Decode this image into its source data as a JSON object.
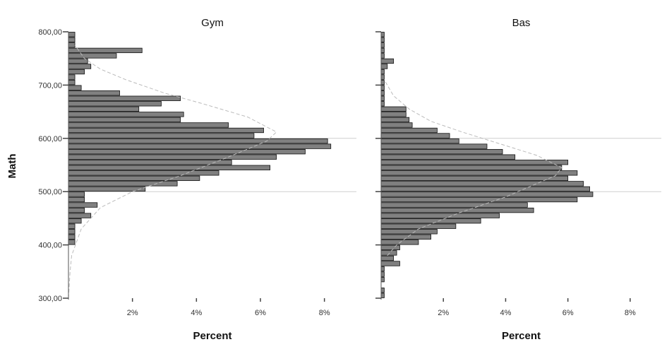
{
  "chart_data": {
    "type": "bar",
    "orientation": "horizontal",
    "y_axis_title": "Math",
    "x_axis_title": "Percent",
    "ylim": [
      300,
      800
    ],
    "xlim": [
      0,
      9
    ],
    "y_ticks": [
      300,
      400,
      500,
      600,
      700,
      800
    ],
    "y_tick_labels": [
      "300,00",
      "400,00",
      "500,00",
      "600,00",
      "700,00",
      "800,00"
    ],
    "x_ticks": [
      2,
      4,
      6,
      8
    ],
    "x_tick_labels": [
      "2%",
      "4%",
      "6%",
      "8%"
    ],
    "reference_lines_y": [
      500,
      600
    ],
    "bin_width": 10,
    "bin_starts": [
      300,
      310,
      320,
      330,
      340,
      350,
      360,
      370,
      380,
      390,
      400,
      410,
      420,
      430,
      440,
      450,
      460,
      470,
      480,
      490,
      500,
      510,
      520,
      530,
      540,
      550,
      560,
      570,
      580,
      590,
      600,
      610,
      620,
      630,
      640,
      650,
      660,
      670,
      680,
      690,
      700,
      710,
      720,
      730,
      740,
      750,
      760,
      770,
      780,
      790
    ],
    "panels": [
      {
        "title": "Gym",
        "values": [
          0,
          0,
          0,
          0,
          0,
          0,
          0,
          0,
          0,
          0,
          0.2,
          0.2,
          0.2,
          0.2,
          0.4,
          0.7,
          0.5,
          0.9,
          0.5,
          0.5,
          2.4,
          3.4,
          4.1,
          4.7,
          6.3,
          5.1,
          6.5,
          7.4,
          8.2,
          8.1,
          5.8,
          6.1,
          5.0,
          3.5,
          3.6,
          2.2,
          2.9,
          3.5,
          1.6,
          0.4,
          0.2,
          0.2,
          0.5,
          0.7,
          0.6,
          1.5,
          2.3,
          0.2,
          0.2,
          0.2
        ],
        "normal_curve": [
          [
            0,
            300
          ],
          [
            0.05,
            350
          ],
          [
            0.1,
            380
          ],
          [
            0.4,
            430
          ],
          [
            1.0,
            470
          ],
          [
            2.0,
            500
          ],
          [
            3.5,
            530
          ],
          [
            5.0,
            565
          ],
          [
            6.2,
            595
          ],
          [
            6.5,
            612
          ],
          [
            5.6,
            640
          ],
          [
            4.2,
            665
          ],
          [
            3.0,
            685
          ],
          [
            1.8,
            710
          ],
          [
            1.0,
            730
          ],
          [
            0.5,
            750
          ],
          [
            0.2,
            775
          ]
        ]
      },
      {
        "title": "Bas",
        "values": [
          0.1,
          0.1,
          0,
          0.1,
          0.1,
          0.1,
          0.6,
          0.4,
          0.5,
          0.6,
          1.2,
          1.6,
          1.8,
          2.4,
          3.2,
          3.8,
          4.9,
          4.7,
          6.3,
          6.8,
          6.7,
          6.5,
          6.0,
          6.3,
          5.8,
          6.0,
          4.3,
          3.9,
          3.4,
          2.5,
          2.2,
          1.8,
          1.0,
          0.9,
          0.8,
          0.8,
          0.1,
          0.1,
          0.1,
          0.1,
          0.1,
          0.1,
          0.1,
          0.2,
          0.4,
          0.1,
          0.1,
          0.1,
          0.1,
          0.1
        ],
        "normal_curve": [
          [
            0.2,
            380
          ],
          [
            0.5,
            400
          ],
          [
            1.2,
            430
          ],
          [
            2.5,
            460
          ],
          [
            4.0,
            490
          ],
          [
            5.6,
            530
          ],
          [
            5.8,
            545
          ],
          [
            5.0,
            568
          ],
          [
            3.8,
            590
          ],
          [
            2.6,
            612
          ],
          [
            1.6,
            632
          ],
          [
            0.9,
            655
          ],
          [
            0.4,
            680
          ],
          [
            0.1,
            710
          ]
        ]
      }
    ]
  }
}
